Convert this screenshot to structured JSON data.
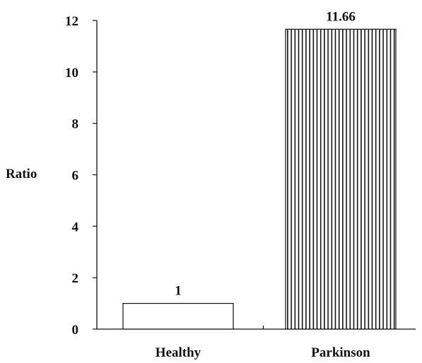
{
  "chart_data": {
    "type": "bar",
    "title": "",
    "xlabel": "",
    "ylabel": "Ratio",
    "ylim": [
      0,
      12
    ],
    "yticks": [
      0,
      2,
      4,
      6,
      8,
      10,
      12
    ],
    "categories": [
      "Healthy",
      "Parkinson"
    ],
    "values": [
      1,
      11.66
    ],
    "data_labels": [
      "1",
      "11.66"
    ],
    "bar_fills": [
      "plain",
      "vertical-hatch"
    ],
    "grid": false,
    "legend": "none",
    "colors": {
      "ink": "#111111",
      "background": "#ffffff"
    }
  }
}
